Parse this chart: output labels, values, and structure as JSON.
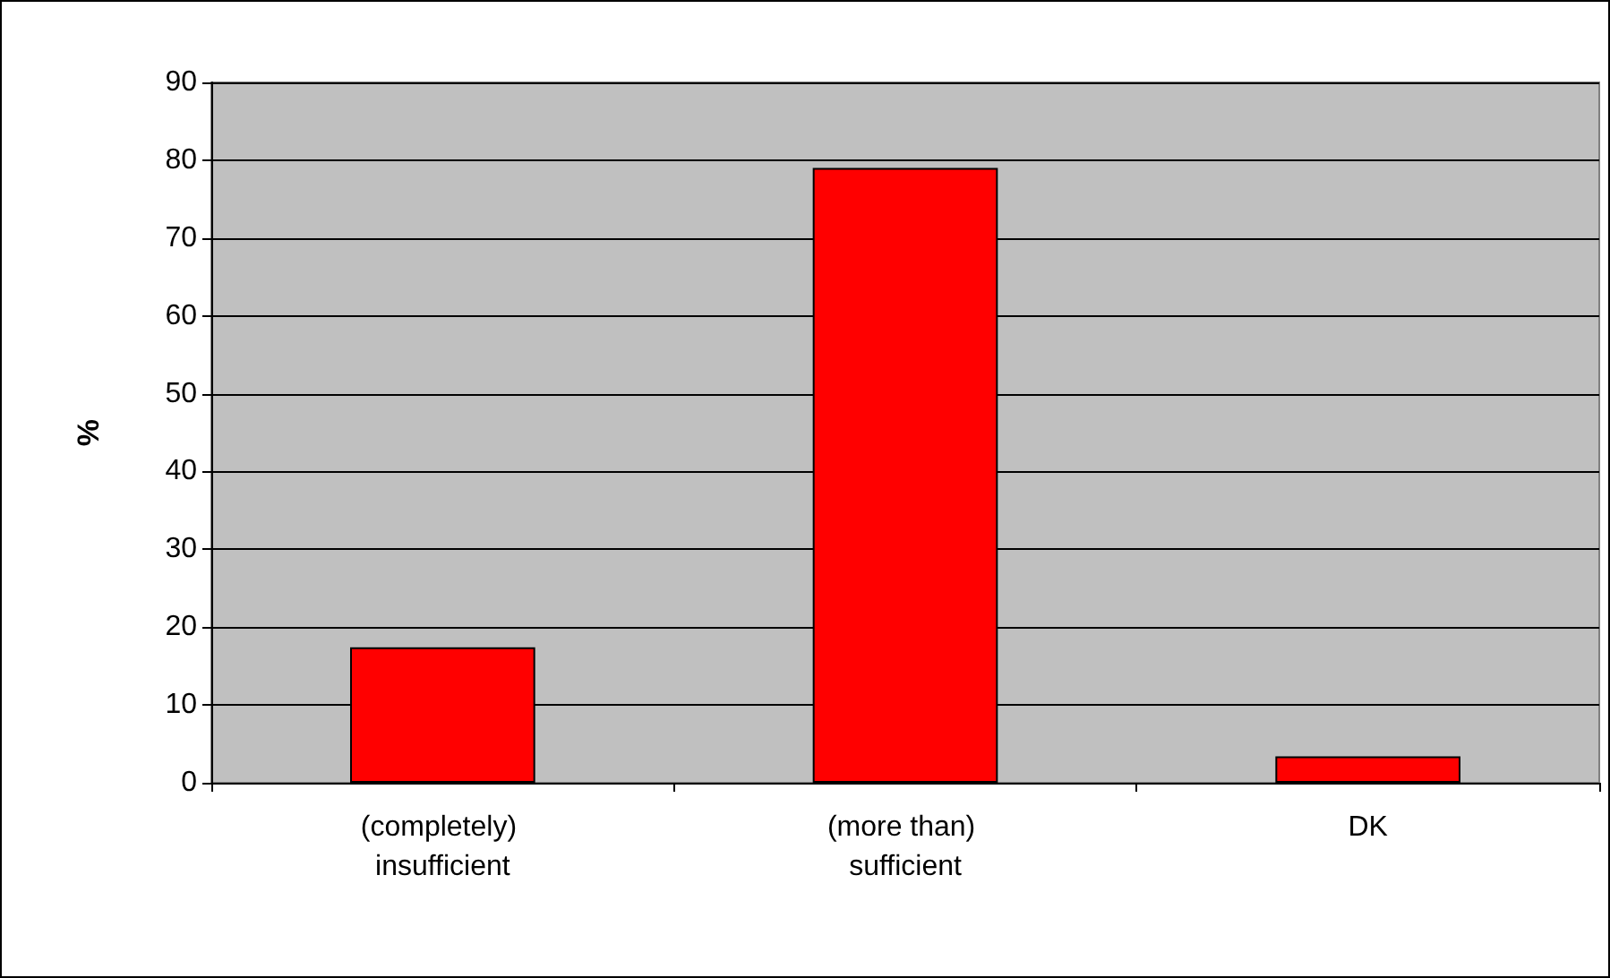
{
  "chart_data": {
    "type": "bar",
    "ylabel": "%",
    "categories": [
      "(completely) insufficient",
      "(more than) sufficient",
      "DK"
    ],
    "values": [
      17.4,
      79,
      3.4
    ],
    "color": "#ff0000",
    "ylim": [
      0,
      90
    ],
    "yticks": [
      0,
      10,
      20,
      30,
      40,
      50,
      60,
      70,
      80,
      90
    ],
    "grid": "y"
  }
}
